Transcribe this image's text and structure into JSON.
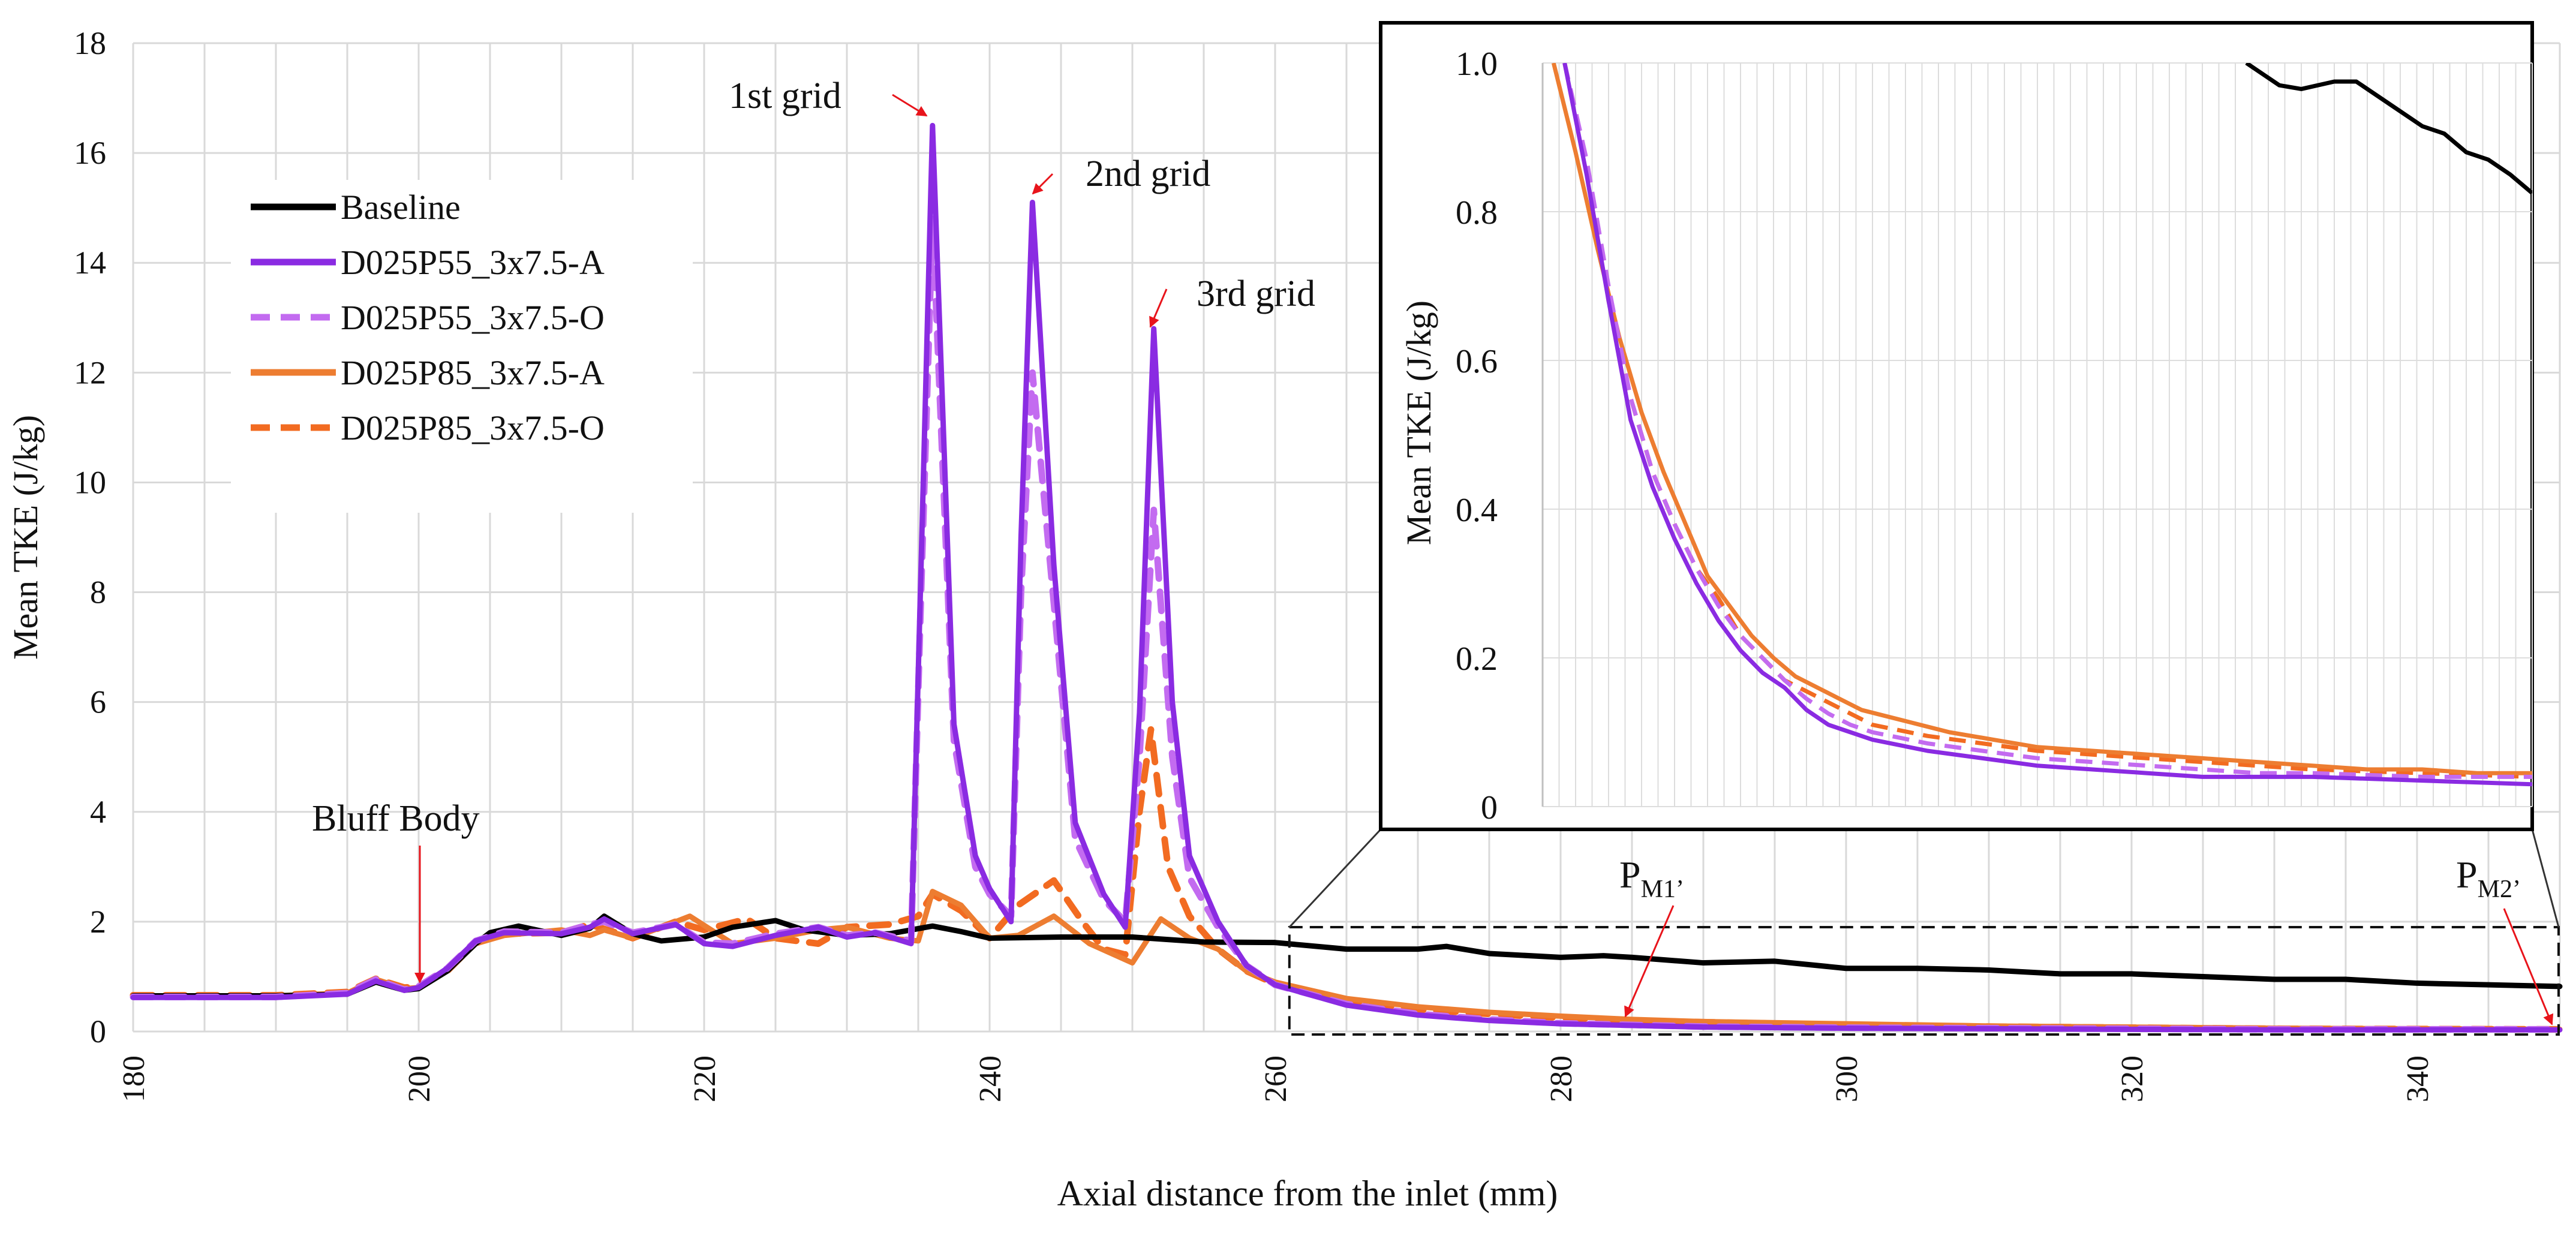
{
  "chart_data": {
    "type": "line",
    "xlabel": "Axial distance from the inlet (mm)",
    "ylabel": "Mean TKE (J/kg)",
    "xlim": [
      180,
      350
    ],
    "ylim": [
      0,
      18
    ],
    "xticks": [
      180,
      200,
      220,
      240,
      260,
      280,
      300,
      320,
      340
    ],
    "yticks": [
      0,
      2,
      4,
      6,
      8,
      10,
      12,
      14,
      16,
      18
    ],
    "grid": true,
    "legend_position": "top-left",
    "series": [
      {
        "name": "Baseline",
        "color": "#000000",
        "style": "solid",
        "x": [
          180,
          190,
          195,
          197,
          199,
          200,
          202,
          204,
          205,
          207,
          210,
          212,
          213,
          215,
          217,
          220,
          222,
          225,
          227,
          230,
          233,
          236,
          238,
          240,
          245,
          250,
          255,
          260,
          265,
          270,
          272,
          275,
          280,
          283,
          285,
          290,
          295,
          300,
          305,
          310,
          315,
          320,
          325,
          330,
          335,
          340,
          345,
          350
        ],
        "y": [
          0.65,
          0.65,
          0.68,
          0.9,
          0.75,
          0.78,
          1.1,
          1.6,
          1.8,
          1.92,
          1.75,
          1.88,
          2.1,
          1.78,
          1.65,
          1.72,
          1.9,
          2.02,
          1.85,
          1.75,
          1.78,
          1.92,
          1.82,
          1.7,
          1.72,
          1.72,
          1.63,
          1.62,
          1.5,
          1.5,
          1.55,
          1.42,
          1.35,
          1.38,
          1.35,
          1.25,
          1.28,
          1.15,
          1.15,
          1.12,
          1.05,
          1.05,
          1.0,
          0.95,
          0.95,
          0.88,
          0.85,
          0.82
        ]
      },
      {
        "name": "D025P55_3x7.5-A",
        "color": "#8a2be2",
        "style": "solid",
        "x": [
          180,
          190,
          195,
          197,
          199,
          200,
          202,
          204,
          206,
          210,
          212,
          213,
          215,
          218,
          220,
          222,
          225,
          228,
          230,
          232,
          234.5,
          235.2,
          236,
          237.5,
          239,
          240,
          241.5,
          242.2,
          243,
          244.5,
          246,
          248,
          249.5,
          250.5,
          251.5,
          252.8,
          254,
          256,
          258,
          260,
          265,
          270,
          275,
          280,
          285,
          290,
          295,
          300,
          310,
          320,
          330,
          340,
          350
        ],
        "y": [
          0.62,
          0.62,
          0.68,
          0.92,
          0.75,
          0.8,
          1.15,
          1.65,
          1.8,
          1.78,
          1.9,
          2.05,
          1.78,
          1.95,
          1.6,
          1.55,
          1.75,
          1.9,
          1.72,
          1.8,
          1.6,
          8.5,
          16.5,
          5.6,
          3.2,
          2.6,
          2.0,
          9.0,
          15.1,
          8.5,
          3.8,
          2.5,
          1.9,
          5.8,
          12.8,
          6.0,
          3.2,
          2.0,
          1.2,
          0.85,
          0.48,
          0.3,
          0.2,
          0.14,
          0.11,
          0.08,
          0.07,
          0.06,
          0.05,
          0.04,
          0.03,
          0.03,
          0.03
        ]
      },
      {
        "name": "D025P55_3x7.5-O",
        "color": "#c36bf0",
        "style": "dashed",
        "x": [
          180,
          190,
          195,
          197,
          199,
          200,
          202,
          204,
          206,
          210,
          212,
          213,
          215,
          218,
          220,
          222,
          225,
          228,
          230,
          232,
          234.5,
          235.2,
          236,
          237.5,
          239,
          240,
          241.5,
          242.2,
          243,
          244.5,
          246,
          248,
          249.5,
          250.5,
          251.5,
          252.8,
          254,
          256,
          258,
          260,
          265,
          270,
          275,
          280,
          285,
          290,
          295,
          300,
          310,
          320,
          330,
          340,
          350
        ],
        "y": [
          0.63,
          0.63,
          0.7,
          0.95,
          0.76,
          0.82,
          1.15,
          1.65,
          1.82,
          1.8,
          1.95,
          2.0,
          1.8,
          1.95,
          1.62,
          1.6,
          1.78,
          1.9,
          1.75,
          1.8,
          1.65,
          8.0,
          14.8,
          5.3,
          3.0,
          2.5,
          2.1,
          8.0,
          12.0,
          7.8,
          3.5,
          2.4,
          2.0,
          5.0,
          9.5,
          5.0,
          2.8,
          1.9,
          1.2,
          0.85,
          0.5,
          0.32,
          0.22,
          0.15,
          0.12,
          0.09,
          0.08,
          0.07,
          0.06,
          0.05,
          0.04,
          0.04,
          0.04
        ]
      },
      {
        "name": "D025P85_3x7.5-A",
        "color": "#ed7d31",
        "style": "solid",
        "x": [
          180,
          190,
          195,
          197,
          199,
          200,
          202,
          204,
          206,
          210,
          212,
          213,
          215,
          218,
          219,
          222,
          225,
          228,
          230,
          233,
          235,
          236,
          238,
          240,
          242,
          244.5,
          247,
          250,
          252,
          254,
          256,
          258,
          260,
          265,
          270,
          275,
          280,
          285,
          290,
          300,
          310,
          320,
          330,
          340,
          350
        ],
        "y": [
          0.65,
          0.65,
          0.7,
          0.95,
          0.78,
          0.8,
          1.1,
          1.6,
          1.75,
          1.85,
          1.75,
          1.85,
          1.7,
          2.0,
          2.1,
          1.6,
          1.7,
          1.85,
          1.9,
          1.7,
          1.65,
          2.55,
          2.3,
          1.7,
          1.75,
          2.1,
          1.6,
          1.25,
          2.05,
          1.7,
          1.5,
          1.1,
          0.9,
          0.6,
          0.45,
          0.35,
          0.28,
          0.22,
          0.18,
          0.14,
          0.1,
          0.08,
          0.06,
          0.05,
          0.04
        ]
      },
      {
        "name": "D025P85_3x7.5-O",
        "color": "#f26b21",
        "style": "dashed",
        "x": [
          180,
          190,
          195,
          197,
          199,
          200,
          202,
          204,
          206,
          210,
          212,
          215,
          218,
          220,
          223,
          225,
          228,
          230,
          233,
          235,
          236,
          238,
          240,
          242,
          244.5,
          246.5,
          248,
          249.5,
          250.5,
          251.3,
          252.5,
          254,
          256,
          258,
          260,
          265,
          270,
          275,
          280,
          285,
          290,
          300,
          310,
          320,
          330,
          340,
          350
        ],
        "y": [
          0.66,
          0.66,
          0.72,
          0.96,
          0.8,
          0.82,
          1.1,
          1.62,
          1.78,
          1.8,
          1.95,
          1.7,
          2.0,
          1.85,
          2.05,
          1.7,
          1.6,
          1.9,
          1.95,
          2.1,
          2.5,
          2.2,
          1.7,
          2.3,
          2.75,
          2.0,
          1.5,
          1.4,
          4.0,
          5.5,
          3.0,
          2.1,
          1.5,
          1.1,
          0.87,
          0.55,
          0.4,
          0.32,
          0.25,
          0.2,
          0.17,
          0.12,
          0.09,
          0.07,
          0.05,
          0.045,
          0.04
        ]
      }
    ],
    "annotations": [
      {
        "text": "1st grid",
        "x": 236,
        "y": 16.5
      },
      {
        "text": "2nd grid",
        "x": 243,
        "y": 15.1
      },
      {
        "text": "3rd grid",
        "x": 251.5,
        "y": 12.8
      },
      {
        "text": "Bluff Body",
        "x": 200,
        "y": 0.8
      }
    ],
    "point_labels": [
      {
        "main": "P",
        "sub": "M1’",
        "x": 284,
        "y": 0.25
      },
      {
        "main": "P",
        "sub": "M2’",
        "x": 350,
        "y": 0.05
      }
    ],
    "zoom_region": {
      "xlim": [
        261,
        350
      ],
      "ylim": [
        0,
        1.9
      ]
    },
    "inset": {
      "ylabel": "Mean TKE (J/kg)",
      "xlim": [
        260,
        350
      ],
      "ylim": [
        0,
        1.0
      ],
      "yticks": [
        "0",
        "0.2",
        "0.4",
        "0.6",
        "0.8",
        "1.0"
      ],
      "series": [
        {
          "name": "Baseline",
          "color": "#000000",
          "style": "solid",
          "x": [
            324,
            327,
            329,
            332,
            334,
            337,
            340,
            342,
            344,
            346,
            348,
            350
          ],
          "y": [
            1.0,
            0.97,
            0.965,
            0.975,
            0.975,
            0.945,
            0.915,
            0.905,
            0.88,
            0.87,
            0.85,
            0.825
          ]
        },
        {
          "name": "D025P55_3x7.5-A",
          "color": "#8a2be2",
          "style": "solid",
          "x": [
            262,
            264,
            266,
            268,
            270,
            272,
            274,
            276,
            278,
            280,
            282,
            284,
            286,
            288,
            290,
            295,
            300,
            305,
            310,
            315,
            320,
            325,
            330,
            340,
            350
          ],
          "y": [
            1.0,
            0.85,
            0.68,
            0.52,
            0.43,
            0.36,
            0.3,
            0.25,
            0.21,
            0.18,
            0.16,
            0.13,
            0.11,
            0.1,
            0.09,
            0.075,
            0.065,
            0.055,
            0.05,
            0.045,
            0.04,
            0.04,
            0.04,
            0.035,
            0.03
          ]
        },
        {
          "name": "D025P55_3x7.5-O",
          "color": "#c36bf0",
          "style": "dashed",
          "x": [
            262,
            264,
            266,
            268,
            270,
            272,
            274,
            276,
            278,
            280,
            282,
            284,
            286,
            288,
            290,
            295,
            300,
            305,
            310,
            315,
            320,
            325,
            330,
            340,
            350
          ],
          "y": [
            1.0,
            0.87,
            0.7,
            0.55,
            0.45,
            0.38,
            0.32,
            0.27,
            0.23,
            0.2,
            0.17,
            0.145,
            0.125,
            0.11,
            0.1,
            0.085,
            0.075,
            0.065,
            0.06,
            0.055,
            0.05,
            0.045,
            0.045,
            0.04,
            0.04
          ]
        },
        {
          "name": "D025P85_3x7.5-A",
          "color": "#ed7d31",
          "style": "solid",
          "x": [
            261,
            263,
            265,
            267,
            269,
            271,
            273,
            275,
            277,
            279,
            281,
            283,
            285,
            287,
            289,
            293,
            297,
            301,
            305,
            310,
            315,
            320,
            325,
            330,
            335,
            340,
            345,
            350
          ],
          "y": [
            1.0,
            0.88,
            0.75,
            0.63,
            0.53,
            0.45,
            0.38,
            0.31,
            0.27,
            0.23,
            0.2,
            0.175,
            0.16,
            0.145,
            0.13,
            0.115,
            0.1,
            0.09,
            0.08,
            0.075,
            0.07,
            0.065,
            0.06,
            0.055,
            0.05,
            0.05,
            0.045,
            0.045
          ]
        },
        {
          "name": "D025P85_3x7.5-O",
          "color": "#f26b21",
          "style": "dashed",
          "x": [
            262,
            264,
            266,
            268,
            270,
            272,
            274,
            276,
            278,
            280,
            282,
            284,
            286,
            288,
            290,
            295,
            300,
            305,
            310,
            315,
            320,
            325,
            330,
            340,
            350
          ],
          "y": [
            1.0,
            0.86,
            0.68,
            0.55,
            0.45,
            0.38,
            0.32,
            0.28,
            0.23,
            0.2,
            0.17,
            0.155,
            0.14,
            0.125,
            0.11,
            0.095,
            0.085,
            0.075,
            0.07,
            0.065,
            0.06,
            0.055,
            0.05,
            0.045,
            0.04
          ]
        }
      ]
    }
  }
}
